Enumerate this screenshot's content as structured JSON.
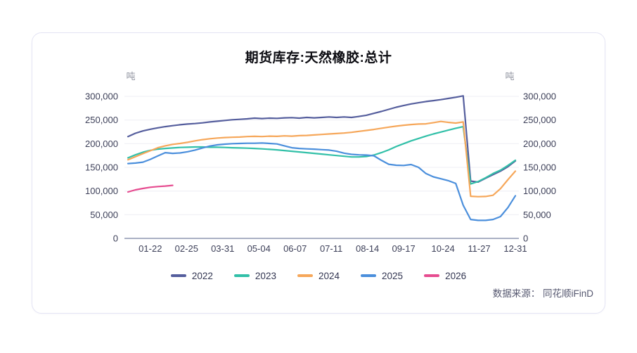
{
  "page": {
    "source": "数据来源： 同花顺iFinD"
  },
  "chart_data": {
    "type": "line",
    "title": "期货库存:天然橡胶:总计",
    "unit_left": "吨",
    "unit_right": "吨",
    "grid": true,
    "legend_position": "bottom",
    "ylim": [
      0,
      300000
    ],
    "y_ticks": [
      0,
      50000,
      100000,
      150000,
      200000,
      250000,
      300000
    ],
    "y_tick_labels": [
      "0",
      "50,000",
      "100,000",
      "150,000",
      "200,000",
      "250,000",
      "300,000"
    ],
    "x_total_weeks": 52,
    "x_ticks": [
      {
        "label": "01-22",
        "week": 3.0
      },
      {
        "label": "02-25",
        "week": 7.857
      },
      {
        "label": "03-31",
        "week": 12.714
      },
      {
        "label": "05-04",
        "week": 17.571
      },
      {
        "label": "06-07",
        "week": 22.429
      },
      {
        "label": "07-11",
        "week": 27.286
      },
      {
        "label": "08-14",
        "week": 32.143
      },
      {
        "label": "09-17",
        "week": 37.0
      },
      {
        "label": "10-24",
        "week": 42.286
      },
      {
        "label": "11-27",
        "week": 47.143
      },
      {
        "label": "12-31",
        "week": 52.0
      }
    ],
    "series": [
      {
        "name": "2022",
        "color": "#555e9d",
        "values": [
          215000,
          222000,
          227000,
          230500,
          233500,
          236000,
          238000,
          240000,
          241500,
          242500,
          244000,
          246000,
          247500,
          249000,
          250500,
          251500,
          252500,
          254000,
          253000,
          254000,
          253500,
          254500,
          255000,
          254000,
          255500,
          254500,
          255500,
          256500,
          255500,
          256500,
          255500,
          257500,
          260000,
          264000,
          268000,
          272500,
          277000,
          280500,
          284000,
          286500,
          289000,
          291000,
          293000,
          295500,
          298000,
          301000,
          121000,
          119000,
          127000,
          134500,
          142000,
          151500,
          163500
        ]
      },
      {
        "name": "2023",
        "color": "#32c0a8",
        "values": [
          170000,
          176500,
          182000,
          186000,
          188500,
          190000,
          191000,
          192000,
          192500,
          193000,
          193000,
          192500,
          192500,
          192000,
          191500,
          191000,
          190500,
          190000,
          189000,
          188000,
          187000,
          185500,
          184000,
          182500,
          181000,
          179500,
          178000,
          176500,
          175000,
          173500,
          172000,
          172000,
          173000,
          176000,
          181000,
          187000,
          194000,
          200000,
          206000,
          211000,
          216000,
          220500,
          224500,
          228500,
          232500,
          236000,
          115000,
          120000,
          128000,
          137000,
          144000,
          154000,
          165000
        ]
      },
      {
        "name": "2024",
        "color": "#f6a75a",
        "values": [
          166000,
          172500,
          179000,
          185000,
          191500,
          195500,
          198500,
          200500,
          203000,
          206000,
          208500,
          210500,
          212000,
          213000,
          213500,
          214000,
          215000,
          215500,
          215000,
          216000,
          215500,
          216500,
          216000,
          217000,
          217500,
          218500,
          219500,
          220500,
          221500,
          222500,
          224000,
          226000,
          228000,
          230000,
          232500,
          235000,
          237000,
          239000,
          240500,
          241500,
          242000,
          244500,
          247000,
          245000,
          243500,
          246000,
          89000,
          88000,
          88500,
          91000,
          105000,
          124000,
          142000
        ]
      },
      {
        "name": "2025",
        "color": "#4b8fdc",
        "values": [
          158000,
          159000,
          161000,
          167000,
          174000,
          181000,
          179500,
          180500,
          183000,
          186500,
          191000,
          195000,
          197500,
          199000,
          200000,
          200500,
          201000,
          201000,
          201500,
          200500,
          199500,
          195500,
          191500,
          190000,
          189000,
          188500,
          187500,
          186500,
          184000,
          180000,
          177500,
          176500,
          176000,
          174500,
          165000,
          156500,
          154500,
          154000,
          156000,
          150000,
          137000,
          130000,
          126000,
          122000,
          116000,
          70000,
          40000,
          38000,
          38000,
          40000,
          46000,
          65000,
          90000
        ]
      },
      {
        "name": "2026",
        "color": "#e64c90",
        "values": [
          98000,
          102500,
          105500,
          108000,
          109500,
          110500,
          112000
        ]
      }
    ]
  }
}
